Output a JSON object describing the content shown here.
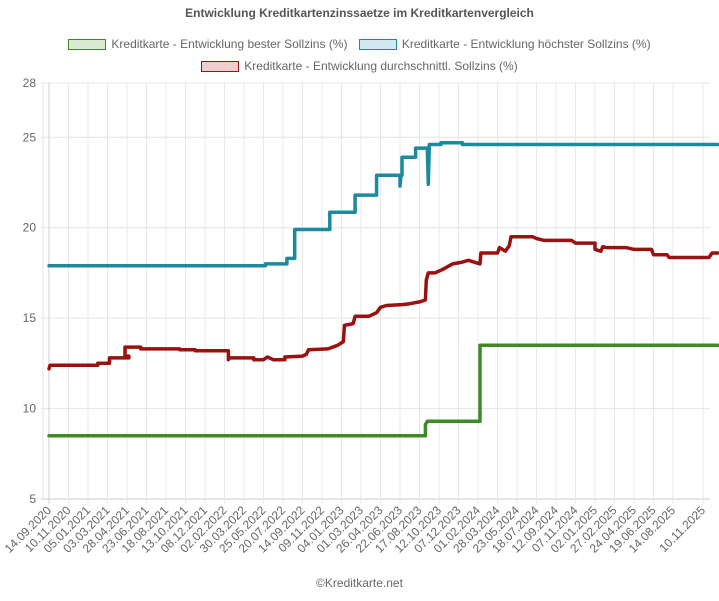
{
  "chart_data": {
    "type": "line",
    "title": "Entwicklung Kreditkartenzinssaetze im Kreditkartenvergleich",
    "xlabel": "",
    "ylabel": "",
    "ylim": [
      5,
      28
    ],
    "yticks": [
      5,
      10,
      15,
      20,
      25,
      28
    ],
    "grid": true,
    "legend_position": "top",
    "categories": [
      "14.09.2020",
      "10.11.2020",
      "05.01.2021",
      "03.03.2021",
      "28.04.2021",
      "23.06.2021",
      "18.08.2021",
      "13.10.2021",
      "08.12.2021",
      "02.02.2022",
      "30.03.2022",
      "25.05.2022",
      "20.07.2022",
      "14.09.2022",
      "09.11.2022",
      "04.01.2023",
      "01.03.2023",
      "26.04.2023",
      "22.06.2023",
      "17.08.2023",
      "12.10.2023",
      "07.12.2023",
      "01.02.2024",
      "28.03.2024",
      "23.05.2024",
      "18.07.2024",
      "12.09.2024",
      "07.11.2024",
      "02.01.2025",
      "27.02.2025",
      "24.04.2025",
      "19.06.2025",
      "14.08.2025",
      "10.11.2025"
    ],
    "series": [
      {
        "name": "Kreditkarte - Entwicklung bester Sollzins  (%)",
        "color": "#3e8a26",
        "fill": "#d9ead3",
        "points": [
          [
            0,
            8.5
          ],
          [
            19.3,
            8.5
          ],
          [
            19.3,
            9.1
          ],
          [
            19.4,
            9.3
          ],
          [
            22.1,
            9.3
          ],
          [
            22.1,
            13.5
          ],
          [
            33.5,
            13.5
          ]
        ]
      },
      {
        "name": "Kreditkarte - Entwicklung höchster Sollzins (%)",
        "color": "#1c8a9e",
        "fill": "#d0e8ee",
        "points": [
          [
            0,
            17.9
          ],
          [
            11.1,
            17.9
          ],
          [
            11.1,
            18.0
          ],
          [
            12.2,
            18.0
          ],
          [
            12.2,
            18.3
          ],
          [
            12.6,
            18.3
          ],
          [
            12.6,
            19.9
          ],
          [
            14.4,
            19.9
          ],
          [
            14.4,
            20.85
          ],
          [
            15.7,
            20.85
          ],
          [
            15.7,
            21.8
          ],
          [
            16.8,
            21.8
          ],
          [
            16.8,
            22.9
          ],
          [
            18.0,
            22.9
          ],
          [
            18.0,
            22.3
          ],
          [
            18.05,
            22.9
          ],
          [
            18.1,
            22.9
          ],
          [
            18.1,
            23.9
          ],
          [
            18.8,
            23.9
          ],
          [
            18.8,
            24.4
          ],
          [
            19.4,
            24.4
          ],
          [
            19.45,
            22.4
          ],
          [
            19.5,
            24.6
          ],
          [
            20.1,
            24.6
          ],
          [
            20.1,
            24.7
          ],
          [
            21.2,
            24.7
          ],
          [
            21.2,
            24.6
          ],
          [
            33.5,
            24.6
          ]
        ]
      },
      {
        "name": "Kreditkarte - Entwicklung durchschnittl. Sollzins (%)",
        "color": "#9b1010",
        "fill": "#eecfcf",
        "points": [
          [
            0,
            12.2
          ],
          [
            0.05,
            12.4
          ],
          [
            2.5,
            12.4
          ],
          [
            2.5,
            12.5
          ],
          [
            2.5,
            12.5
          ],
          [
            3.1,
            12.5
          ],
          [
            3.1,
            12.8
          ],
          [
            4.1,
            12.8
          ],
          [
            4.1,
            12.9
          ],
          [
            3.9,
            12.9
          ],
          [
            3.9,
            13.4
          ],
          [
            4.7,
            13.4
          ],
          [
            4.7,
            13.3
          ],
          [
            6.7,
            13.3
          ],
          [
            6.7,
            13.25
          ],
          [
            7.5,
            13.25
          ],
          [
            7.5,
            13.2
          ],
          [
            9.2,
            13.2
          ],
          [
            9.2,
            12.7
          ],
          [
            9.25,
            12.8
          ],
          [
            10.5,
            12.8
          ],
          [
            10.5,
            12.7
          ],
          [
            11.0,
            12.7
          ],
          [
            11.2,
            12.85
          ],
          [
            11.5,
            12.7
          ],
          [
            12.1,
            12.7
          ],
          [
            12.1,
            12.85
          ],
          [
            13.0,
            12.9
          ],
          [
            13.2,
            13.0
          ],
          [
            13.3,
            13.25
          ],
          [
            14.3,
            13.3
          ],
          [
            14.8,
            13.5
          ],
          [
            15.1,
            13.7
          ],
          [
            15.15,
            14.6
          ],
          [
            15.6,
            14.7
          ],
          [
            15.7,
            15.1
          ],
          [
            16.4,
            15.1
          ],
          [
            16.8,
            15.3
          ],
          [
            17.0,
            15.6
          ],
          [
            17.3,
            15.7
          ],
          [
            18.1,
            15.75
          ],
          [
            18.5,
            15.8
          ],
          [
            19.0,
            15.9
          ],
          [
            19.3,
            16.0
          ],
          [
            19.35,
            17.1
          ],
          [
            19.45,
            17.5
          ],
          [
            19.8,
            17.5
          ],
          [
            20.2,
            17.7
          ],
          [
            20.7,
            18.0
          ],
          [
            21.2,
            18.1
          ],
          [
            21.5,
            18.2
          ],
          [
            21.8,
            18.1
          ],
          [
            22.1,
            18.0
          ],
          [
            22.15,
            18.6
          ],
          [
            23.0,
            18.6
          ],
          [
            23.1,
            18.9
          ],
          [
            23.4,
            18.7
          ],
          [
            23.6,
            19.0
          ],
          [
            23.7,
            19.5
          ],
          [
            24.8,
            19.5
          ],
          [
            25.0,
            19.4
          ],
          [
            25.4,
            19.3
          ],
          [
            26.8,
            19.3
          ],
          [
            27.0,
            19.15
          ],
          [
            28.0,
            19.15
          ],
          [
            28.0,
            18.8
          ],
          [
            28.3,
            18.7
          ],
          [
            28.4,
            18.95
          ],
          [
            28.6,
            18.9
          ],
          [
            29.6,
            18.9
          ],
          [
            30.0,
            18.8
          ],
          [
            30.9,
            18.8
          ],
          [
            31.0,
            18.5
          ],
          [
            31.7,
            18.5
          ],
          [
            31.8,
            18.35
          ],
          [
            33.2,
            18.35
          ],
          [
            33.3,
            18.6
          ],
          [
            33.5,
            18.6
          ]
        ]
      }
    ]
  },
  "footer": "©Kreditkarte.net"
}
